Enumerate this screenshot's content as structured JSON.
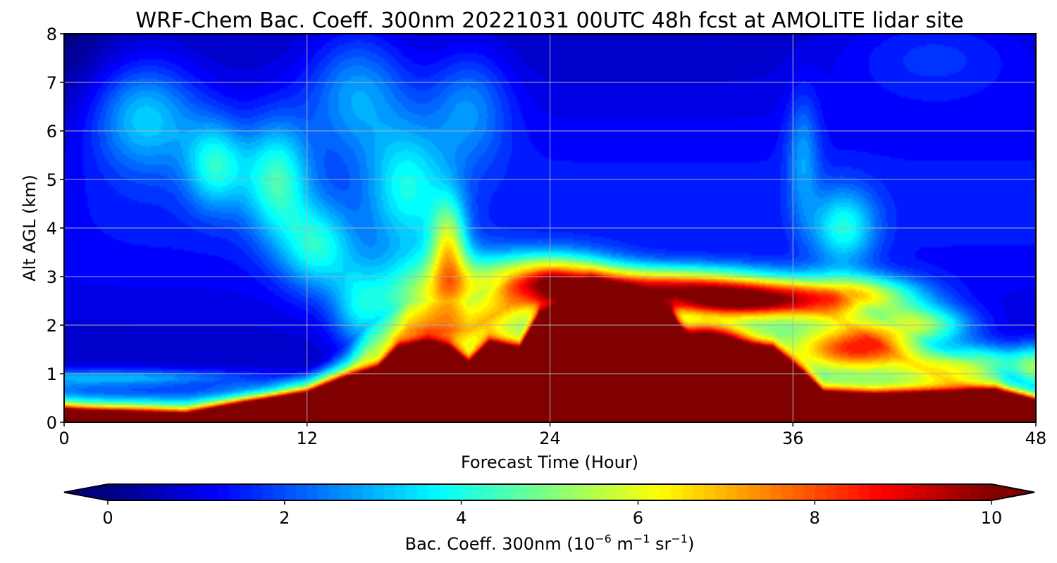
{
  "chart_data": {
    "type": "heatmap",
    "title": "WRF-Chem Bac. Coeff. 300nm  20221031 00UTC 48h fcst at AMOLITE lidar site",
    "xlabel": "Forecast Time (Hour)",
    "ylabel": "Alt AGL (km)",
    "xlim": [
      0,
      48
    ],
    "ylim": [
      0,
      8
    ],
    "xticks": [
      "0",
      "12",
      "24",
      "36",
      "48"
    ],
    "xtick_values": [
      0,
      12,
      24,
      36,
      48
    ],
    "yticks": [
      "0",
      "1",
      "2",
      "3",
      "4",
      "5",
      "6",
      "7",
      "8"
    ],
    "ytick_values": [
      0,
      1,
      2,
      3,
      4,
      5,
      6,
      7,
      8
    ],
    "grid": true,
    "colormap": "jet",
    "colorbar": {
      "label_prefix": "Bac. Coeff. 300nm  (10",
      "exp1": "−6",
      "mid": " m",
      "exp2": "−1",
      "mid2": " sr",
      "exp3": "−1",
      "suffix": ")",
      "range": [
        0,
        10
      ],
      "ticks": [
        "0",
        "2",
        "4",
        "6",
        "8",
        "10"
      ],
      "tick_values": [
        0,
        2,
        4,
        6,
        8,
        10
      ],
      "extend": "both"
    },
    "features": [
      {
        "x": 0,
        "y": 8,
        "sx": 2.5,
        "sy": 3.2,
        "amp": -0.6
      },
      {
        "x": 4,
        "y": 6.3,
        "sx": 2.6,
        "sy": 1.1,
        "amp": 2.2
      },
      {
        "x": 7.5,
        "y": 5.3,
        "sx": 1.5,
        "sy": 0.9,
        "amp": 2.6
      },
      {
        "x": 10.5,
        "y": 5.0,
        "sx": 1.6,
        "sy": 1.2,
        "amp": 2.9
      },
      {
        "x": 12.5,
        "y": 3.6,
        "sx": 1.8,
        "sy": 0.9,
        "amp": 2.6
      },
      {
        "x": 14.5,
        "y": 6.8,
        "sx": 2.5,
        "sy": 1.3,
        "amp": 1.9
      },
      {
        "x": 17,
        "y": 4.8,
        "sx": 2.0,
        "sy": 1.3,
        "amp": 2.4
      },
      {
        "x": 14.5,
        "y": 2.3,
        "sx": 1.3,
        "sy": 0.9,
        "amp": 1.7
      },
      {
        "x": 20,
        "y": 6.5,
        "sx": 2.0,
        "sy": 1.2,
        "amp": 1.6
      },
      {
        "x": 19,
        "y": 3.6,
        "sx": 0.9,
        "sy": 1.0,
        "amp": 3.8
      },
      {
        "x": 18.5,
        "y": 2.5,
        "sx": 3.3,
        "sy": 0.9,
        "amp": 4.6
      },
      {
        "x": 24,
        "y": 3.0,
        "sx": 3.2,
        "sy": 0.5,
        "amp": 5.2
      },
      {
        "x": 30,
        "y": 2.8,
        "sx": 6.0,
        "sy": 0.4,
        "amp": 6.5
      },
      {
        "x": 33.5,
        "y": 2.5,
        "sx": 3.0,
        "sy": 0.3,
        "amp": 4.5
      },
      {
        "x": 31.5,
        "y": 1.7,
        "sx": 1.8,
        "sy": 0.3,
        "amp": 6.2
      },
      {
        "x": 38.5,
        "y": 4.0,
        "sx": 1.6,
        "sy": 0.8,
        "amp": 2.6
      },
      {
        "x": 39,
        "y": 2.6,
        "sx": 3.2,
        "sy": 0.4,
        "amp": 5.0
      },
      {
        "x": 42,
        "y": 2.0,
        "sx": 2.6,
        "sy": 0.4,
        "amp": 4.5
      },
      {
        "x": 39,
        "y": 1.5,
        "sx": 2.7,
        "sy": 0.4,
        "amp": 3.9
      },
      {
        "x": 45,
        "y": 1.2,
        "sx": 3.0,
        "sy": 0.4,
        "amp": 4.2
      },
      {
        "x": 48,
        "y": 1.1,
        "sx": 1.0,
        "sy": 0.5,
        "amp": 3.0
      },
      {
        "x": 43,
        "y": 7.6,
        "sx": 5.0,
        "sy": 1.0,
        "amp": 1.0
      },
      {
        "x": 36.5,
        "y": 5.5,
        "sx": 0.8,
        "sy": 1.3,
        "amp": 1.5
      },
      {
        "x": 2,
        "y": 0.9,
        "sx": 8.0,
        "sy": 0.2,
        "amp": 2.5
      }
    ],
    "ground_layer": [
      [
        0,
        0.25
      ],
      [
        1,
        0.22
      ],
      [
        3,
        0.2
      ],
      [
        6,
        0.15
      ],
      [
        9,
        0.4
      ],
      [
        12,
        0.6
      ],
      [
        14,
        0.9
      ],
      [
        15.5,
        1.1
      ],
      [
        16.5,
        1.5
      ],
      [
        18,
        1.6
      ],
      [
        19,
        1.5
      ],
      [
        20,
        1.2
      ],
      [
        21,
        1.6
      ],
      [
        22.5,
        1.5
      ],
      [
        23.5,
        2.2
      ],
      [
        25,
        2.4
      ],
      [
        26,
        2.8
      ],
      [
        28,
        2.6
      ],
      [
        30,
        2.2
      ],
      [
        31,
        1.5
      ],
      [
        33,
        1.6
      ],
      [
        35,
        1.5
      ],
      [
        36.5,
        1.0
      ],
      [
        37.5,
        0.6
      ],
      [
        40,
        0.55
      ],
      [
        44,
        0.6
      ],
      [
        46,
        0.65
      ],
      [
        48,
        0.45
      ]
    ],
    "haze_top": [
      [
        0,
        0.85
      ],
      [
        2,
        0.8
      ],
      [
        6,
        0.8
      ],
      [
        10,
        0.9
      ],
      [
        12,
        1.1
      ],
      [
        14,
        1.6
      ],
      [
        15,
        2.0
      ],
      [
        17,
        2.5
      ],
      [
        20,
        2.5
      ],
      [
        22,
        3.0
      ],
      [
        24,
        3.2
      ],
      [
        27,
        3.0
      ],
      [
        32,
        3.0
      ],
      [
        36,
        3.0
      ],
      [
        38,
        2.8
      ],
      [
        41,
        2.0
      ],
      [
        44,
        1.4
      ],
      [
        46,
        1.1
      ],
      [
        48,
        0.7
      ]
    ]
  }
}
